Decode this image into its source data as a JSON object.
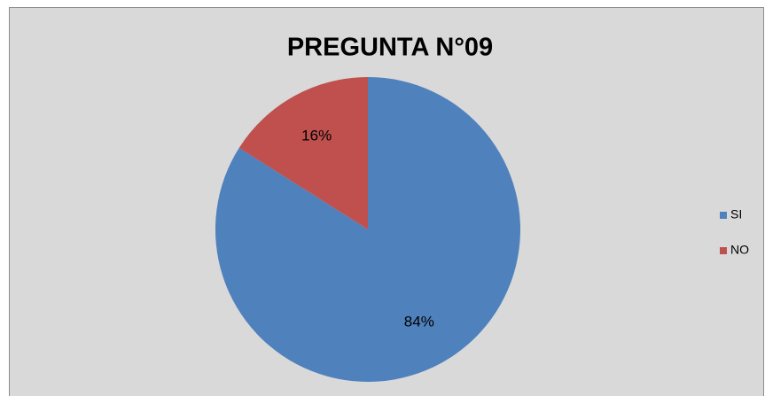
{
  "chart_data": {
    "type": "pie",
    "title": "PREGUNTA N°09",
    "categories": [
      "SI",
      "NO"
    ],
    "values": [
      84,
      16
    ],
    "value_labels": [
      "84%",
      "16%"
    ],
    "colors": [
      "#4f81bd",
      "#c0504d"
    ],
    "legend": "right"
  }
}
